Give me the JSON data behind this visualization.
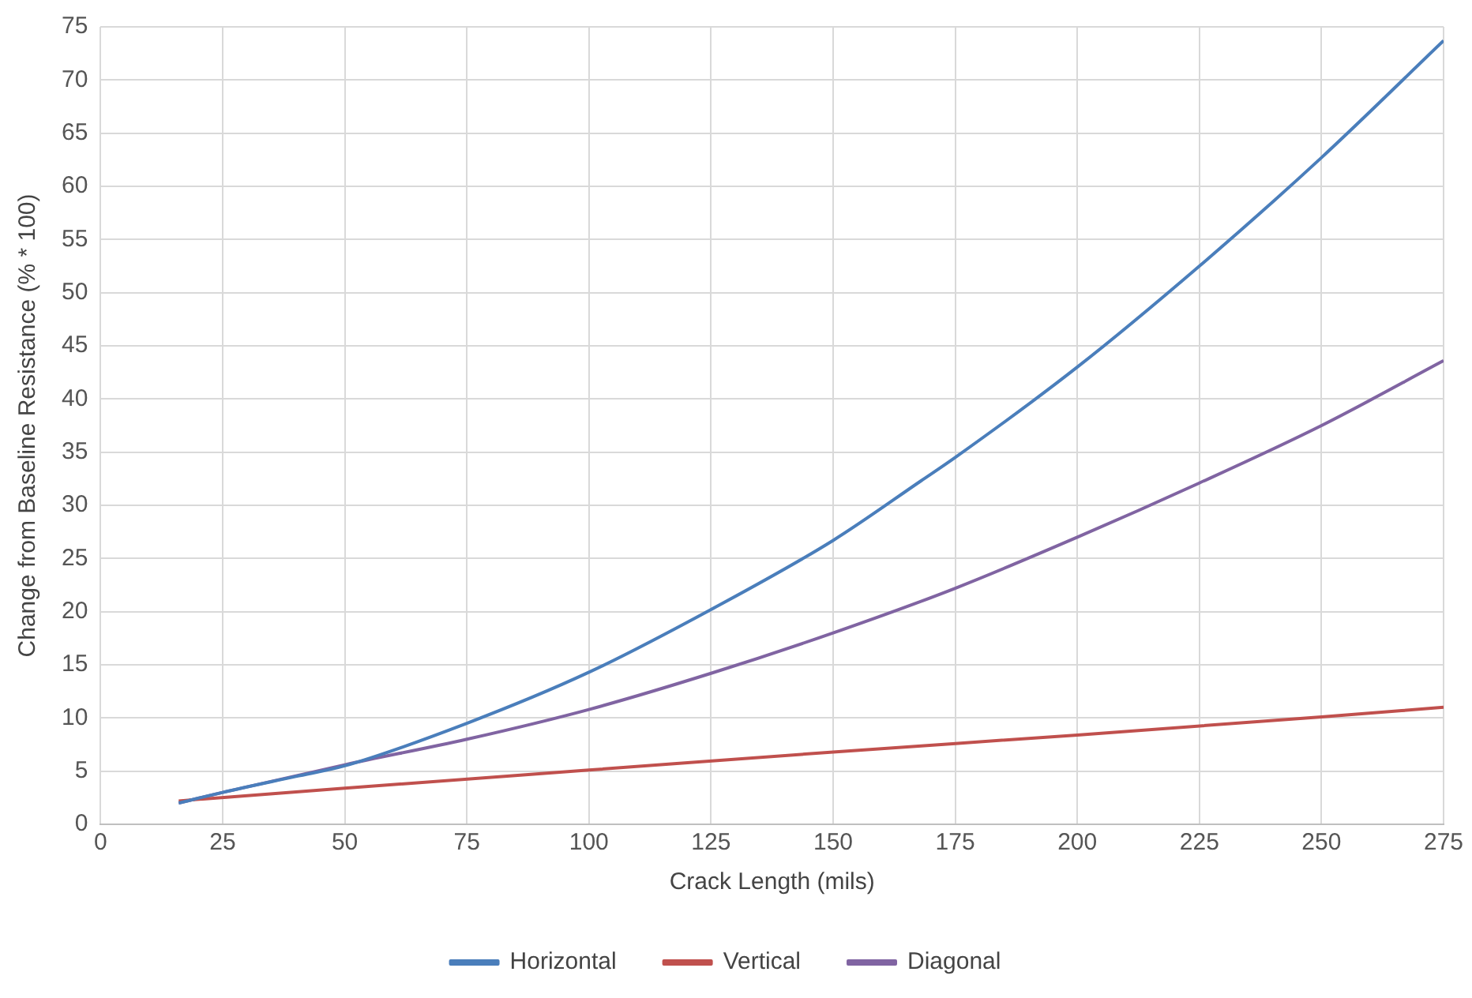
{
  "chart_data": {
    "type": "line",
    "xlabel": "Crack Length (mils)",
    "ylabel": "Change from Baseline Resistance (% * 100)",
    "xlim": [
      0,
      275
    ],
    "xticks": [
      0,
      25,
      50,
      75,
      100,
      125,
      150,
      175,
      200,
      225,
      250,
      275
    ],
    "ylim": [
      0,
      75
    ],
    "yticks": [
      0,
      5,
      10,
      15,
      20,
      25,
      30,
      35,
      40,
      45,
      50,
      55,
      60,
      65,
      70,
      75
    ],
    "grid": true,
    "legend": "bottom",
    "marker": "none",
    "line_style": "solid",
    "series": [
      {
        "name": "Horizontal",
        "color": "#4a7ebb",
        "x": [
          16,
          25,
          40,
          50,
          75,
          100,
          125,
          150,
          168,
          175,
          200,
          225,
          250,
          275
        ],
        "values": [
          2,
          3,
          4.5,
          5.5,
          9.5,
          14.3,
          20.2,
          26.7,
          32.3,
          34.5,
          43,
          52.5,
          62.7,
          73.7
        ]
      },
      {
        "name": "Vertical",
        "color": "#c0504d",
        "x": [
          16,
          50,
          100,
          150,
          200,
          250,
          275
        ],
        "values": [
          2.2,
          3.4,
          5.1,
          6.8,
          8.4,
          10.1,
          11
        ]
      },
      {
        "name": "Diagonal",
        "color": "#8064a2",
        "x": [
          16,
          25,
          50,
          75,
          100,
          125,
          150,
          175,
          200,
          225,
          250,
          275
        ],
        "values": [
          2,
          3,
          5.6,
          8,
          10.8,
          14.2,
          18,
          22.2,
          27,
          32.1,
          37.5,
          43.6
        ]
      }
    ]
  }
}
